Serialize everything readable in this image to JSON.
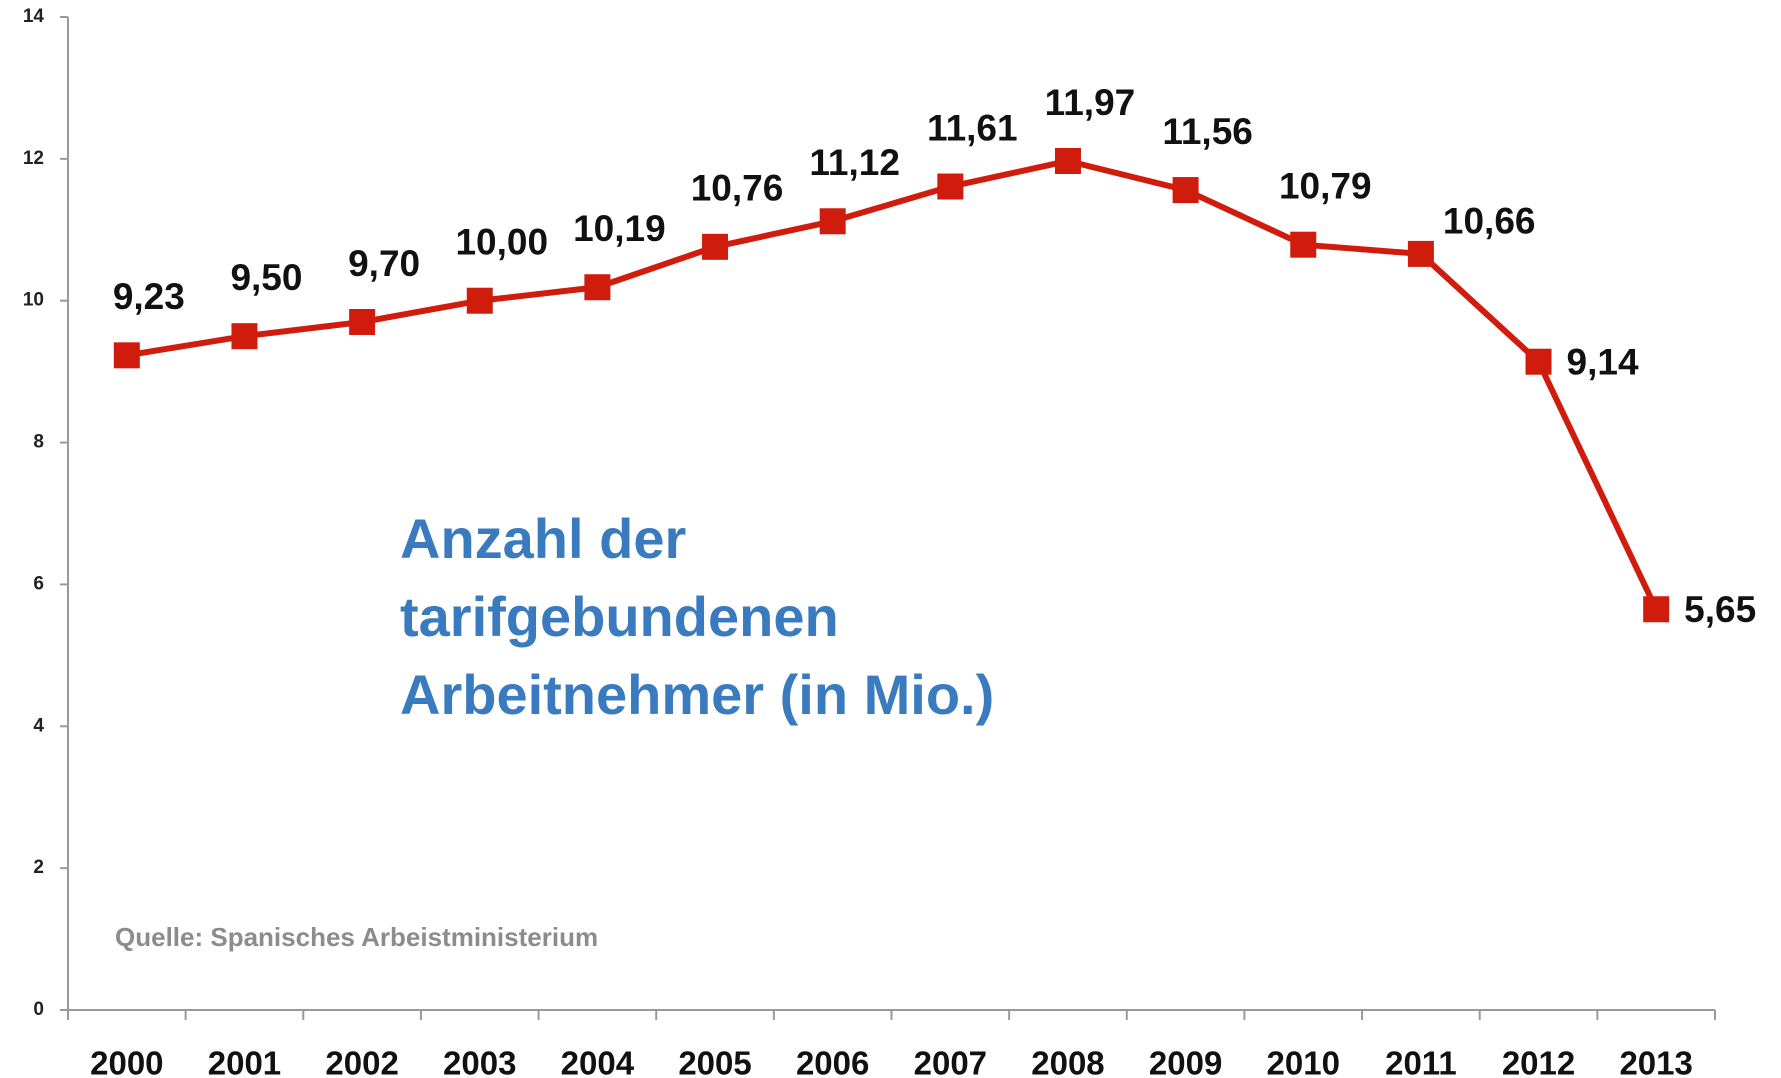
{
  "chart_data": {
    "type": "line",
    "annotation": [
      "Anzahl der",
      "tarifgebundenen",
      "Arbeitnehmer (in Mio.)"
    ],
    "source": "Quelle: Spanisches Arbeistministerium",
    "categories": [
      "2000",
      "2001",
      "2002",
      "2003",
      "2004",
      "2005",
      "2006",
      "2007",
      "2008",
      "2009",
      "2010",
      "2011",
      "2012",
      "2013"
    ],
    "series": [
      {
        "name": "Tarifgebundene Arbeitnehmer",
        "color": "#d01c0c",
        "values": [
          9.23,
          9.5,
          9.7,
          10.0,
          10.19,
          10.76,
          11.12,
          11.61,
          11.97,
          11.56,
          10.79,
          10.66,
          9.14,
          5.65
        ],
        "value_labels": [
          "9,23",
          "9,50",
          "9,70",
          "10,00",
          "10,19",
          "10,76",
          "11,12",
          "11,61",
          "11,97",
          "11,56",
          "10,79",
          "10,66",
          "9,14",
          "5,65"
        ]
      }
    ],
    "ylim": [
      0,
      14
    ],
    "yticks": [
      0,
      2,
      4,
      6,
      8,
      10,
      12,
      14
    ],
    "grid": false
  }
}
